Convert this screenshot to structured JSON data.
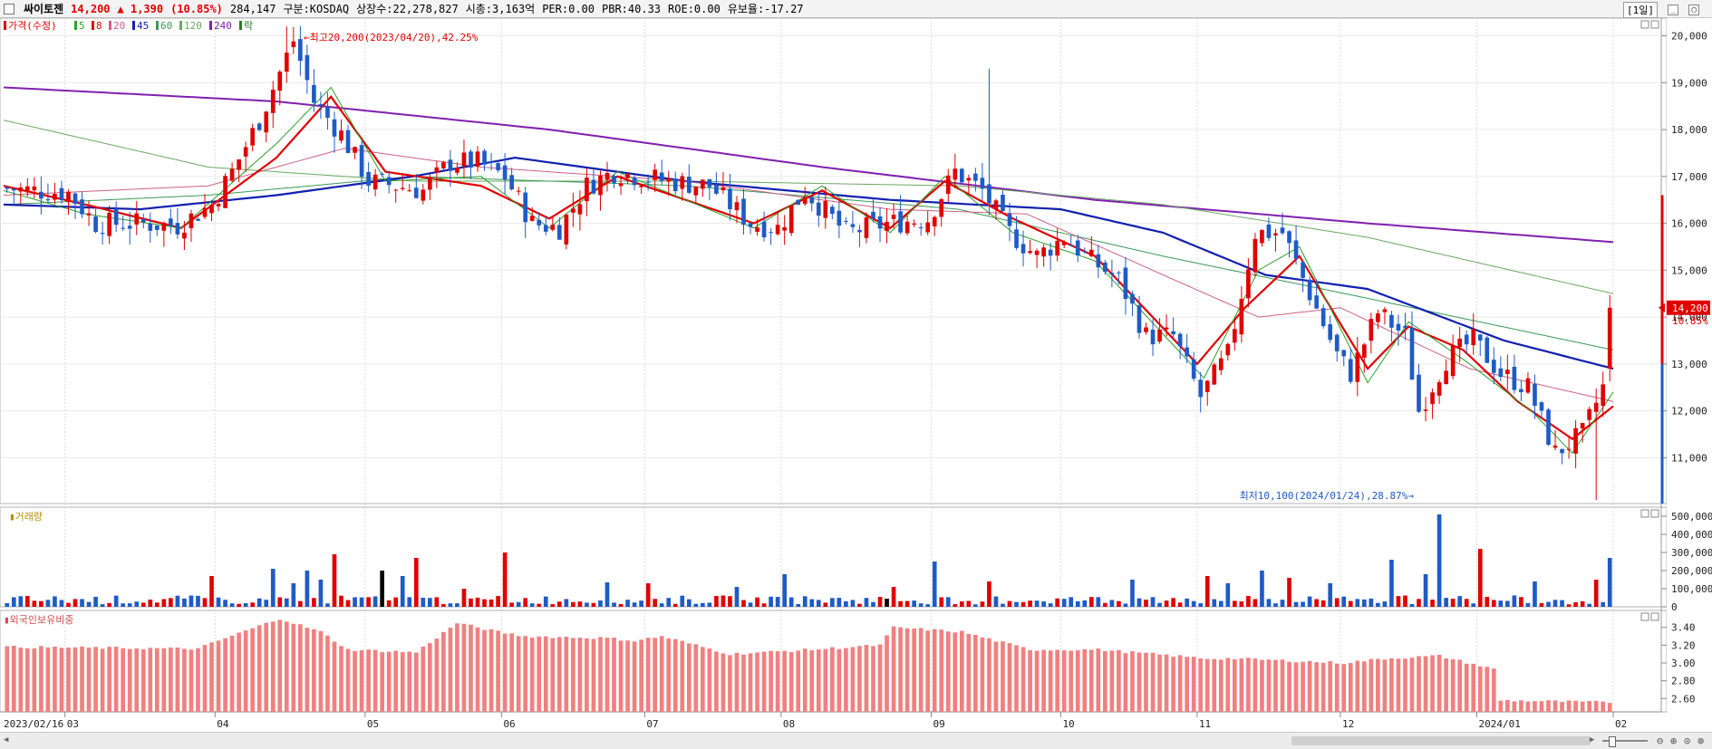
{
  "header": {
    "name": "싸이토젠",
    "price": "14,200",
    "change": "▲ 1,390",
    "change_pct": "(10.85%)",
    "volume": "284,147",
    "market": "구분:KOSDAQ",
    "listed": "상장수:22,278,827",
    "mcap": "시총:3,163억",
    "per": "PER:0.00",
    "pbr": "PBR:40.33",
    "roe": "ROE:0.00",
    "float": "유보율:-17.27",
    "timeframe": "[1일]"
  },
  "price_legend": {
    "label": "가격(수정)",
    "ma_labels": [
      "5",
      "8",
      "20",
      "45",
      "60",
      "120",
      "240"
    ],
    "extra": "락"
  },
  "volume_label": "거래량",
  "foreign_label": "외국인보유비중",
  "annotations": {
    "high": "최고20,200(2023/04/20),42.25%",
    "low": "최저10,100(2024/01/24),28.87%"
  },
  "last_price_tag": {
    "price": "14,200",
    "pct": "10.85%"
  },
  "colors": {
    "up": "#e00000",
    "down": "#1e5bc6",
    "ma5": "#2ca02c",
    "ma8": "#e00000",
    "ma20": "#d06080",
    "ma45": "#1020b0",
    "ma60": "#3a9a5a",
    "ma120": "#6aaa60",
    "ma240": "#8020b0",
    "foreign": "#f08080"
  },
  "chart_data": [
    {
      "type": "candlestick",
      "title": "싸이토젠",
      "ylim": [
        10100,
        20300
      ],
      "y_ticks": [
        11000,
        12000,
        13000,
        14000,
        15000,
        16000,
        17000,
        18000,
        19000,
        20000
      ],
      "y_tick_labels": [
        "11,000",
        "12,000",
        "13,000",
        "14,000",
        "15,000",
        "16,000",
        "17,000",
        "18,000",
        "19,000",
        "20,000"
      ],
      "x_tick_labels": [
        "2023/02/16",
        "03",
        "04",
        "05",
        "06",
        "07",
        "08",
        "09",
        "10",
        "11",
        "12",
        "2024/01",
        "02"
      ],
      "x_tick_index": [
        0,
        9,
        31,
        53,
        73,
        94,
        114,
        136,
        155,
        175,
        196,
        216,
        236
      ],
      "num_days": 236,
      "anchors": [
        [
          0,
          16750
        ],
        [
          10,
          16650
        ],
        [
          14,
          16000
        ],
        [
          20,
          16000
        ],
        [
          26,
          15950
        ],
        [
          31,
          16400
        ],
        [
          34,
          17100
        ],
        [
          38,
          18200
        ],
        [
          43,
          19900
        ],
        [
          46,
          18600
        ],
        [
          50,
          17900
        ],
        [
          54,
          16900
        ],
        [
          58,
          16800
        ],
        [
          62,
          16700
        ],
        [
          66,
          17300
        ],
        [
          70,
          17300
        ],
        [
          74,
          17000
        ],
        [
          78,
          16000
        ],
        [
          82,
          15900
        ],
        [
          86,
          16800
        ],
        [
          90,
          17100
        ],
        [
          94,
          17000
        ],
        [
          98,
          16900
        ],
        [
          104,
          16800
        ],
        [
          110,
          16000
        ],
        [
          114,
          15900
        ],
        [
          118,
          16700
        ],
        [
          124,
          15800
        ],
        [
          130,
          16000
        ],
        [
          136,
          16100
        ],
        [
          140,
          17100
        ],
        [
          144,
          16700
        ],
        [
          148,
          15800
        ],
        [
          152,
          15300
        ],
        [
          156,
          15700
        ],
        [
          160,
          15200
        ],
        [
          164,
          14800
        ],
        [
          168,
          13600
        ],
        [
          172,
          13600
        ],
        [
          176,
          12300
        ],
        [
          180,
          13200
        ],
        [
          184,
          15800
        ],
        [
          188,
          15800
        ],
        [
          192,
          14500
        ],
        [
          196,
          13200
        ],
        [
          198,
          12800
        ],
        [
          202,
          14100
        ],
        [
          206,
          13600
        ],
        [
          208,
          12000
        ],
        [
          212,
          13100
        ],
        [
          216,
          13500
        ],
        [
          220,
          12800
        ],
        [
          224,
          12500
        ],
        [
          228,
          11100
        ],
        [
          232,
          11500
        ],
        [
          235,
          12500
        ],
        [
          236,
          14200
        ]
      ],
      "high": {
        "value": 20200,
        "date": "2023/04/20",
        "pct": "42.25%"
      },
      "low": {
        "value": 10100,
        "date": "2024/01/24",
        "pct": "28.87%"
      },
      "series": [
        {
          "name": "240",
          "values": [
            [
              0,
              18900
            ],
            [
              40,
              18600
            ],
            [
              80,
              18000
            ],
            [
              120,
              17200
            ],
            [
              160,
              16500
            ],
            [
              200,
              16000
            ],
            [
              236,
              15600
            ]
          ]
        },
        {
          "name": "120",
          "values": [
            [
              0,
              18200
            ],
            [
              30,
              17200
            ],
            [
              60,
              16900
            ],
            [
              100,
              16900
            ],
            [
              140,
              16800
            ],
            [
              170,
              16400
            ],
            [
              200,
              15700
            ],
            [
              236,
              14500
            ]
          ]
        },
        {
          "name": "60",
          "values": [
            [
              0,
              16400
            ],
            [
              30,
              16600
            ],
            [
              60,
              17000
            ],
            [
              100,
              16800
            ],
            [
              140,
              16300
            ],
            [
              170,
              15300
            ],
            [
              200,
              14400
            ],
            [
              236,
              13300
            ]
          ]
        },
        {
          "name": "45",
          "values": [
            [
              0,
              16400
            ],
            [
              20,
              16300
            ],
            [
              40,
              16600
            ],
            [
              60,
              17000
            ],
            [
              75,
              17400
            ],
            [
              100,
              16900
            ],
            [
              130,
              16500
            ],
            [
              155,
              16300
            ],
            [
              170,
              15800
            ],
            [
              185,
              14900
            ],
            [
              200,
              14600
            ],
            [
              220,
              13500
            ],
            [
              236,
              12900
            ]
          ]
        },
        {
          "name": "20",
          "values": [
            [
              0,
              16600
            ],
            [
              30,
              16800
            ],
            [
              50,
              17600
            ],
            [
              70,
              17200
            ],
            [
              100,
              16900
            ],
            [
              130,
              16300
            ],
            [
              150,
              16200
            ],
            [
              170,
              14900
            ],
            [
              184,
              14000
            ],
            [
              196,
              14200
            ],
            [
              215,
              12900
            ],
            [
              236,
              12200
            ]
          ]
        },
        {
          "name": "8",
          "values": [
            [
              0,
              16800
            ],
            [
              12,
              16400
            ],
            [
              26,
              15900
            ],
            [
              40,
              17400
            ],
            [
              48,
              18700
            ],
            [
              56,
              17100
            ],
            [
              70,
              16800
            ],
            [
              80,
              16100
            ],
            [
              90,
              17000
            ],
            [
              110,
              16000
            ],
            [
              120,
              16700
            ],
            [
              130,
              15900
            ],
            [
              138,
              16900
            ],
            [
              148,
              16100
            ],
            [
              160,
              15300
            ],
            [
              175,
              13000
            ],
            [
              182,
              14200
            ],
            [
              190,
              15300
            ],
            [
              200,
              12900
            ],
            [
              206,
              13800
            ],
            [
              214,
              13300
            ],
            [
              222,
              12200
            ],
            [
              230,
              11400
            ],
            [
              236,
              12100
            ]
          ]
        },
        {
          "name": "5",
          "values": [
            [
              0,
              16700
            ],
            [
              12,
              16200
            ],
            [
              26,
              15900
            ],
            [
              40,
              17700
            ],
            [
              48,
              18900
            ],
            [
              56,
              16900
            ],
            [
              70,
              17000
            ],
            [
              80,
              15900
            ],
            [
              90,
              17100
            ],
            [
              110,
              15900
            ],
            [
              120,
              16800
            ],
            [
              130,
              15800
            ],
            [
              138,
              17000
            ],
            [
              148,
              15800
            ],
            [
              160,
              15200
            ],
            [
              176,
              12700
            ],
            [
              184,
              15000
            ],
            [
              190,
              15500
            ],
            [
              200,
              12600
            ],
            [
              206,
              13900
            ],
            [
              214,
              13100
            ],
            [
              224,
              12000
            ],
            [
              230,
              11100
            ],
            [
              236,
              12400
            ]
          ]
        }
      ]
    },
    {
      "type": "bar",
      "title": "거래량",
      "ylim": [
        0,
        530000
      ],
      "y_tick_labels": [
        "0",
        "100,000",
        "200,000",
        "300,000",
        "400,000",
        "500,000"
      ],
      "spikes": [
        [
          30,
          170000
        ],
        [
          39,
          210000
        ],
        [
          42,
          130000
        ],
        [
          44,
          200000
        ],
        [
          46,
          150000
        ],
        [
          48,
          290000
        ],
        [
          55,
          200000
        ],
        [
          58,
          170000
        ],
        [
          60,
          270000
        ],
        [
          67,
          100000
        ],
        [
          73,
          300000
        ],
        [
          88,
          135000
        ],
        [
          94,
          130000
        ],
        [
          107,
          110000
        ],
        [
          114,
          180000
        ],
        [
          130,
          110000
        ],
        [
          136,
          250000
        ],
        [
          144,
          140000
        ],
        [
          165,
          150000
        ],
        [
          176,
          170000
        ],
        [
          179,
          130000
        ],
        [
          184,
          200000
        ],
        [
          188,
          160000
        ],
        [
          194,
          130000
        ],
        [
          203,
          260000
        ],
        [
          208,
          180000
        ],
        [
          210,
          510000
        ],
        [
          216,
          320000
        ],
        [
          224,
          140000
        ],
        [
          233,
          150000
        ],
        [
          235,
          270000
        ]
      ],
      "base": 45000
    },
    {
      "type": "bar",
      "title": "외국인보유비중",
      "ylim": [
        2.45,
        3.55
      ],
      "y_tick_labels": [
        "2.60",
        "2.80",
        "3.00",
        "3.20",
        "3.40"
      ],
      "anchors": [
        [
          0,
          3.18
        ],
        [
          28,
          3.16
        ],
        [
          31,
          3.25
        ],
        [
          40,
          3.5
        ],
        [
          46,
          3.35
        ],
        [
          50,
          3.15
        ],
        [
          60,
          3.12
        ],
        [
          66,
          3.45
        ],
        [
          72,
          3.35
        ],
        [
          76,
          3.3
        ],
        [
          88,
          3.28
        ],
        [
          92,
          3.25
        ],
        [
          96,
          3.3
        ],
        [
          106,
          3.1
        ],
        [
          118,
          3.15
        ],
        [
          128,
          3.2
        ],
        [
          130,
          3.4
        ],
        [
          140,
          3.35
        ],
        [
          150,
          3.15
        ],
        [
          160,
          3.15
        ],
        [
          168,
          3.1
        ],
        [
          176,
          3.05
        ],
        [
          180,
          3.05
        ],
        [
          196,
          3.0
        ],
        [
          202,
          3.05
        ],
        [
          210,
          3.08
        ],
        [
          218,
          2.93
        ],
        [
          219,
          2.58
        ],
        [
          232,
          2.56
        ],
        [
          236,
          2.56
        ]
      ]
    }
  ]
}
